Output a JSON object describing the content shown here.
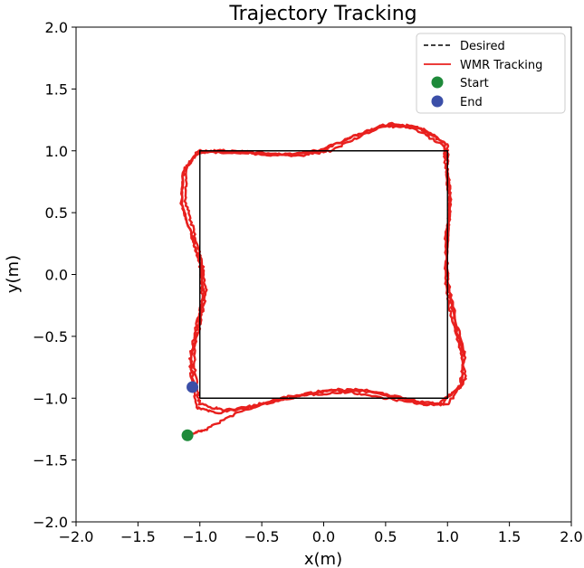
{
  "chart_data": {
    "type": "line",
    "title": "Trajectory Tracking",
    "xlabel": "x(m)",
    "ylabel": "y(m)",
    "xlim": [
      -2.0,
      2.0
    ],
    "ylim": [
      -2.0,
      2.0
    ],
    "grid": false,
    "legend_position": "top-right",
    "x_ticks": [
      "−2.0",
      "−1.5",
      "−1.0",
      "−0.5",
      "0.0",
      "0.5",
      "1.0",
      "1.5",
      "2.0"
    ],
    "y_ticks": [
      "−2.0",
      "−1.5",
      "−1.0",
      "−0.5",
      "0.0",
      "0.5",
      "1.0",
      "1.5",
      "2.0"
    ],
    "x_tick_values": [
      -2.0,
      -1.5,
      -1.0,
      -0.5,
      0.0,
      0.5,
      1.0,
      1.5,
      2.0
    ],
    "y_tick_values": [
      -2.0,
      -1.5,
      -1.0,
      -0.5,
      0.0,
      0.5,
      1.0,
      1.5,
      2.0
    ],
    "series": [
      {
        "name": "Desired",
        "style": "dashed",
        "color": "#000000",
        "points": [
          [
            -1.0,
            -1.0
          ],
          [
            1.0,
            -1.0
          ],
          [
            1.0,
            1.0
          ],
          [
            -1.0,
            1.0
          ],
          [
            -1.0,
            -1.0
          ]
        ]
      },
      {
        "name": "WMR Tracking",
        "style": "solid",
        "color": "#e8201e",
        "passes": [
          [
            [
              -1.1,
              -1.3
            ],
            [
              -0.95,
              -1.25
            ],
            [
              -0.7,
              -1.12
            ],
            [
              -0.4,
              -1.02
            ],
            [
              -0.1,
              -0.97
            ],
            [
              0.2,
              -0.95
            ],
            [
              0.5,
              -1.0
            ],
            [
              0.8,
              -1.05
            ],
            [
              1.0,
              -1.05
            ],
            [
              1.15,
              -0.85
            ],
            [
              1.1,
              -0.6
            ],
            [
              1.03,
              -0.35
            ],
            [
              0.98,
              -0.05
            ],
            [
              1.0,
              0.3
            ],
            [
              1.02,
              0.6
            ],
            [
              1.0,
              0.85
            ],
            [
              1.0,
              1.05
            ],
            [
              0.8,
              1.18
            ],
            [
              0.55,
              1.22
            ],
            [
              0.3,
              1.12
            ],
            [
              0.05,
              1.0
            ],
            [
              -0.2,
              0.96
            ],
            [
              -0.5,
              0.97
            ],
            [
              -0.8,
              1.0
            ],
            [
              -1.0,
              1.0
            ],
            [
              -1.1,
              0.88
            ],
            [
              -1.12,
              0.6
            ],
            [
              -1.05,
              0.35
            ],
            [
              -0.98,
              0.1
            ],
            [
              -0.95,
              -0.15
            ],
            [
              -1.0,
              -0.4
            ],
            [
              -1.05,
              -0.65
            ],
            [
              -1.02,
              -0.95
            ]
          ],
          [
            [
              -1.02,
              -0.95
            ],
            [
              -1.0,
              -1.05
            ],
            [
              -0.8,
              -1.1
            ],
            [
              -0.5,
              -1.05
            ],
            [
              -0.2,
              -0.98
            ],
            [
              0.1,
              -0.93
            ],
            [
              0.4,
              -0.95
            ],
            [
              0.7,
              -1.02
            ],
            [
              0.95,
              -1.05
            ],
            [
              1.12,
              -0.88
            ],
            [
              1.12,
              -0.62
            ],
            [
              1.05,
              -0.35
            ],
            [
              1.0,
              -0.05
            ],
            [
              0.99,
              0.28
            ],
            [
              1.03,
              0.58
            ],
            [
              1.0,
              0.85
            ],
            [
              0.98,
              1.06
            ],
            [
              0.75,
              1.2
            ],
            [
              0.5,
              1.21
            ],
            [
              0.25,
              1.12
            ],
            [
              0.0,
              1.01
            ],
            [
              -0.25,
              0.97
            ],
            [
              -0.55,
              0.98
            ],
            [
              -0.85,
              0.99
            ],
            [
              -1.02,
              0.99
            ],
            [
              -1.13,
              0.85
            ],
            [
              -1.15,
              0.58
            ],
            [
              -1.07,
              0.33
            ],
            [
              -1.0,
              0.08
            ],
            [
              -0.97,
              -0.18
            ],
            [
              -1.02,
              -0.42
            ],
            [
              -1.07,
              -0.68
            ],
            [
              -1.05,
              -0.92
            ]
          ],
          [
            [
              -1.05,
              -0.92
            ],
            [
              -1.02,
              -1.08
            ],
            [
              -0.85,
              -1.12
            ],
            [
              -0.6,
              -1.07
            ],
            [
              -0.3,
              -0.99
            ],
            [
              0.0,
              -0.94
            ],
            [
              0.3,
              -0.93
            ],
            [
              0.6,
              -0.99
            ],
            [
              0.9,
              -1.06
            ],
            [
              1.1,
              -0.92
            ],
            [
              1.14,
              -0.65
            ],
            [
              1.07,
              -0.38
            ],
            [
              1.01,
              -0.08
            ],
            [
              0.98,
              0.25
            ],
            [
              1.02,
              0.55
            ],
            [
              0.99,
              0.82
            ],
            [
              0.97,
              1.04
            ],
            [
              0.72,
              1.19
            ],
            [
              0.45,
              1.2
            ],
            [
              0.2,
              1.1
            ],
            [
              -0.05,
              1.0
            ],
            [
              -0.3,
              0.97
            ],
            [
              -0.6,
              0.99
            ],
            [
              -0.88,
              1.0
            ],
            [
              -1.03,
              0.97
            ],
            [
              -1.14,
              0.82
            ],
            [
              -1.14,
              0.55
            ],
            [
              -1.06,
              0.3
            ],
            [
              -0.99,
              0.05
            ],
            [
              -0.98,
              -0.2
            ],
            [
              -1.04,
              -0.45
            ],
            [
              -1.08,
              -0.7
            ],
            [
              -1.06,
              -0.91
            ]
          ]
        ]
      }
    ],
    "markers": [
      {
        "name": "Start",
        "x": -1.1,
        "y": -1.3,
        "color": "#1e8a3a"
      },
      {
        "name": "End",
        "x": -1.06,
        "y": -0.91,
        "color": "#3b4fa8"
      }
    ]
  }
}
